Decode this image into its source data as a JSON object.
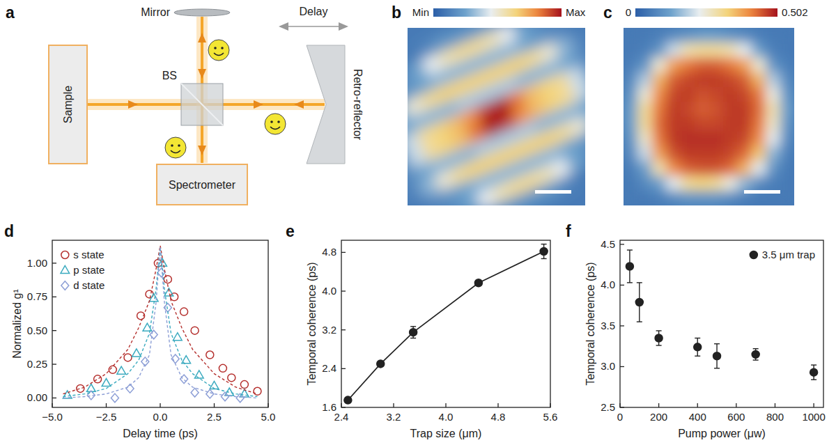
{
  "chart_data": [
    {
      "type": "diagram",
      "panel": "a",
      "labels": {
        "mirror": "Mirror",
        "beam_splitter": "BS",
        "delay": "Delay",
        "sample": "Sample",
        "spectrometer": "Spectrometer",
        "retro_reflector": "Retro-reflector"
      }
    },
    {
      "type": "heatmap",
      "panel": "b",
      "colorbar": {
        "range": [
          0,
          1
        ],
        "ticks": [
          {
            "value": 0,
            "label": "Min"
          },
          {
            "value": 1,
            "label": "Max"
          }
        ]
      },
      "cells": [
        [
          0.1,
          0.1,
          0.1,
          0.1,
          0.1,
          0.1,
          0.1,
          0.1,
          0.1,
          0.1,
          0.1,
          0.1,
          0.1,
          0.1,
          0.1,
          0.1
        ],
        [
          0.1,
          0.1,
          0.1,
          0.1,
          0.1,
          0.1,
          0.1,
          0.1,
          0.1,
          0.1,
          0.1,
          0.1,
          0.1,
          0.1,
          0.1,
          0.1
        ],
        [
          0.1,
          0.1,
          0.1,
          0.1,
          0.1,
          0.15,
          0.2,
          0.2,
          0.2,
          0.2,
          0.15,
          0.1,
          0.1,
          0.1,
          0.1,
          0.1
        ],
        [
          0.1,
          0.1,
          0.1,
          0.15,
          0.25,
          0.45,
          0.55,
          0.6,
          0.6,
          0.55,
          0.45,
          0.25,
          0.15,
          0.1,
          0.1,
          0.1
        ],
        [
          0.1,
          0.1,
          0.15,
          0.2,
          0.25,
          0.3,
          0.3,
          0.3,
          0.3,
          0.3,
          0.3,
          0.25,
          0.2,
          0.15,
          0.1,
          0.1
        ],
        [
          0.1,
          0.15,
          0.3,
          0.5,
          0.6,
          0.65,
          0.65,
          0.65,
          0.65,
          0.65,
          0.65,
          0.6,
          0.5,
          0.3,
          0.15,
          0.1
        ],
        [
          0.1,
          0.15,
          0.25,
          0.3,
          0.3,
          0.3,
          0.35,
          0.35,
          0.35,
          0.35,
          0.3,
          0.3,
          0.3,
          0.25,
          0.15,
          0.1
        ],
        [
          0.1,
          0.2,
          0.4,
          0.6,
          0.65,
          0.7,
          0.8,
          0.95,
          1,
          0.85,
          0.7,
          0.65,
          0.6,
          0.4,
          0.2,
          0.1
        ],
        [
          0.1,
          0.2,
          0.4,
          0.6,
          0.65,
          0.7,
          0.85,
          1,
          0.95,
          0.8,
          0.7,
          0.65,
          0.6,
          0.4,
          0.2,
          0.1
        ],
        [
          0.1,
          0.15,
          0.25,
          0.3,
          0.3,
          0.3,
          0.35,
          0.35,
          0.35,
          0.35,
          0.3,
          0.3,
          0.3,
          0.25,
          0.15,
          0.1
        ],
        [
          0.1,
          0.15,
          0.3,
          0.5,
          0.6,
          0.65,
          0.65,
          0.65,
          0.65,
          0.65,
          0.65,
          0.6,
          0.5,
          0.3,
          0.15,
          0.1
        ],
        [
          0.1,
          0.1,
          0.15,
          0.2,
          0.25,
          0.3,
          0.3,
          0.3,
          0.3,
          0.3,
          0.3,
          0.25,
          0.2,
          0.15,
          0.1,
          0.1
        ],
        [
          0.1,
          0.1,
          0.1,
          0.15,
          0.25,
          0.45,
          0.55,
          0.6,
          0.6,
          0.55,
          0.45,
          0.25,
          0.15,
          0.1,
          0.1,
          0.1
        ],
        [
          0.1,
          0.1,
          0.1,
          0.1,
          0.1,
          0.15,
          0.2,
          0.2,
          0.2,
          0.2,
          0.15,
          0.1,
          0.1,
          0.1,
          0.1,
          0.1
        ],
        [
          0.1,
          0.1,
          0.1,
          0.1,
          0.1,
          0.1,
          0.1,
          0.1,
          0.1,
          0.1,
          0.1,
          0.1,
          0.1,
          0.1,
          0.1,
          0.1
        ],
        [
          0.1,
          0.1,
          0.1,
          0.1,
          0.1,
          0.1,
          0.1,
          0.1,
          0.1,
          0.1,
          0.1,
          0.1,
          0.1,
          0.1,
          0.1,
          0.1
        ]
      ]
    },
    {
      "type": "heatmap",
      "panel": "c",
      "colorbar": {
        "range": [
          0,
          0.502
        ],
        "ticks": [
          0,
          0.502
        ]
      },
      "cells": [
        [
          0.05,
          0.05,
          0.06,
          0.08,
          0.1,
          0.12,
          0.12,
          0.1,
          0.08,
          0.06,
          0.05,
          0.05
        ],
        [
          0.05,
          0.06,
          0.1,
          0.2,
          0.28,
          0.3,
          0.3,
          0.28,
          0.22,
          0.12,
          0.06,
          0.05
        ],
        [
          0.06,
          0.1,
          0.25,
          0.38,
          0.42,
          0.44,
          0.44,
          0.42,
          0.38,
          0.25,
          0.1,
          0.06
        ],
        [
          0.08,
          0.18,
          0.36,
          0.44,
          0.46,
          0.47,
          0.47,
          0.46,
          0.44,
          0.36,
          0.18,
          0.08
        ],
        [
          0.1,
          0.25,
          0.4,
          0.46,
          0.47,
          0.45,
          0.46,
          0.47,
          0.46,
          0.42,
          0.24,
          0.1
        ],
        [
          0.12,
          0.3,
          0.42,
          0.47,
          0.46,
          0.44,
          0.45,
          0.47,
          0.47,
          0.43,
          0.28,
          0.12
        ],
        [
          0.12,
          0.3,
          0.43,
          0.47,
          0.47,
          0.46,
          0.46,
          0.47,
          0.47,
          0.42,
          0.26,
          0.1
        ],
        [
          0.1,
          0.26,
          0.42,
          0.47,
          0.48,
          0.48,
          0.48,
          0.47,
          0.46,
          0.4,
          0.22,
          0.08
        ],
        [
          0.08,
          0.2,
          0.38,
          0.45,
          0.47,
          0.47,
          0.47,
          0.46,
          0.43,
          0.34,
          0.15,
          0.06
        ],
        [
          0.06,
          0.12,
          0.28,
          0.4,
          0.44,
          0.45,
          0.45,
          0.43,
          0.36,
          0.22,
          0.1,
          0.05
        ],
        [
          0.05,
          0.08,
          0.12,
          0.22,
          0.3,
          0.32,
          0.3,
          0.24,
          0.15,
          0.08,
          0.06,
          0.05
        ],
        [
          0.05,
          0.05,
          0.06,
          0.08,
          0.1,
          0.1,
          0.1,
          0.08,
          0.06,
          0.05,
          0.05,
          0.05
        ]
      ]
    },
    {
      "type": "scatter",
      "panel": "d",
      "x_label": "Delay time (ps)",
      "y_label": "Normalized g¹",
      "xlim": [
        -5,
        5
      ],
      "xticks": [
        {
          "value": -5,
          "label": "−5.0"
        },
        {
          "value": -2.5,
          "label": "−2.5"
        },
        {
          "value": 0,
          "label": "0.0"
        },
        2.5,
        {
          "value": 5,
          "label": "5.0"
        }
      ],
      "ylim": [
        -0.07,
        1.17
      ],
      "yticks": [
        {
          "value": 0,
          "label": "0.00"
        },
        0.25,
        {
          "value": 0.5,
          "label": "0.50"
        },
        0.75,
        {
          "value": 1,
          "label": "1.00"
        }
      ],
      "legend": "upper left",
      "series": [
        {
          "name": "s state",
          "color": "#b5302e",
          "marker": "open-circle",
          "x": [
            -3.7,
            -2.9,
            -2.2,
            -1.5,
            -0.9,
            -0.5,
            -0.1,
            0.35,
            0.65,
            1.1,
            1.6,
            2.3,
            2.9,
            3.3,
            3.9,
            4.5
          ],
          "values": [
            0.07,
            0.14,
            0.21,
            0.3,
            0.61,
            0.77,
            1.0,
            0.88,
            0.75,
            0.64,
            0.5,
            0.32,
            0.22,
            0.15,
            0.1,
            0.05
          ]
        },
        {
          "name": "p state",
          "color": "#3aaabf",
          "marker": "open-triangle",
          "x": [
            -4.3,
            -3.2,
            -2.5,
            -1.8,
            -1.1,
            -0.6,
            -0.3,
            0.1,
            0.4,
            0.8,
            1.2,
            1.8,
            2.5,
            3.2,
            3.9
          ],
          "values": [
            0.02,
            0.07,
            0.11,
            0.2,
            0.33,
            0.52,
            0.74,
            1.0,
            0.78,
            0.45,
            0.28,
            0.17,
            0.09,
            0.04,
            0.03
          ]
        },
        {
          "name": "d state",
          "color": "#8d9fd6",
          "marker": "open-diamond",
          "x": [
            -3.2,
            -2.1,
            -1.4,
            -0.7,
            -0.3,
            0.05,
            0.35,
            0.7,
            1.1,
            1.6,
            2.3,
            3.0,
            3.7
          ],
          "values": [
            0.02,
            0.0,
            0.07,
            0.27,
            0.47,
            0.93,
            0.67,
            0.29,
            0.14,
            0.04,
            0.03,
            0.01,
            0.0
          ]
        },
        {
          "type": "line",
          "line_style": "dashed",
          "color": "#b5302e",
          "x": [
            -4.5,
            -3.5,
            -2.5,
            -1.5,
            -1,
            -0.5,
            -0.2,
            0,
            0.2,
            0.5,
            1,
            1.5,
            2.5,
            3.5,
            4.5
          ],
          "values": [
            0.03,
            0.08,
            0.18,
            0.36,
            0.52,
            0.72,
            0.95,
            1.13,
            0.95,
            0.72,
            0.52,
            0.36,
            0.18,
            0.08,
            0.03
          ]
        },
        {
          "type": "line",
          "line_style": "dashed",
          "color": "#3aaabf",
          "x": [
            -4.5,
            -3.5,
            -2.5,
            -1.5,
            -1,
            -0.5,
            -0.2,
            0,
            0.2,
            0.5,
            1,
            1.5,
            2.5,
            3.5,
            4.5
          ],
          "values": [
            0.01,
            0.03,
            0.07,
            0.18,
            0.28,
            0.48,
            0.8,
            1.12,
            0.8,
            0.48,
            0.28,
            0.18,
            0.07,
            0.03,
            0.01
          ]
        },
        {
          "type": "line",
          "line_style": "dashed",
          "color": "#8d9fd6",
          "x": [
            -4.5,
            -3.5,
            -2.5,
            -1.5,
            -1,
            -0.5,
            -0.2,
            0,
            0.2,
            0.5,
            1,
            1.5,
            2.5,
            3.5,
            4.5
          ],
          "values": [
            0,
            0.01,
            0.03,
            0.08,
            0.15,
            0.32,
            0.7,
            1.12,
            0.7,
            0.32,
            0.15,
            0.08,
            0.03,
            0.01,
            0
          ]
        }
      ]
    },
    {
      "type": "line",
      "panel": "e",
      "x_label": "Trap size (μm)",
      "y_label": "Temporal coherence (ps)",
      "xlim": [
        2.4,
        5.6
      ],
      "xticks": [
        2.4,
        3.2,
        {
          "value": 4,
          "label": "4.0"
        },
        4.8,
        5.6
      ],
      "ylim": [
        1.6,
        5.05
      ],
      "yticks": [
        1.6,
        2.4,
        3.2,
        {
          "value": 4,
          "label": "4.0"
        },
        4.8
      ],
      "x": [
        2.5,
        3.0,
        3.5,
        4.5,
        5.5
      ],
      "series": [
        {
          "color": "#222222",
          "marker": "circle",
          "line_style": "solid",
          "values": [
            1.75,
            2.5,
            3.15,
            4.17,
            4.82
          ],
          "errors": [
            0.05,
            0.05,
            0.12,
            0.05,
            0.15
          ]
        }
      ]
    },
    {
      "type": "scatter",
      "panel": "f",
      "x_label": "Pump power (μw)",
      "y_label": "Temporal coherence (ps)",
      "xlim": [
        0,
        1050
      ],
      "xticks": [
        0,
        200,
        400,
        600,
        800,
        1000
      ],
      "ylim": [
        2.5,
        4.55
      ],
      "yticks": [
        2.5,
        {
          "value": 3,
          "label": "3.0"
        },
        3.5,
        {
          "value": 4,
          "label": "4.0"
        },
        4.5
      ],
      "legend": "upper right",
      "x": [
        50,
        100,
        200,
        400,
        500,
        700,
        1000
      ],
      "series": [
        {
          "name": "3.5 μm trap",
          "color": "#222222",
          "marker": "circle",
          "values": [
            4.23,
            3.79,
            3.35,
            3.24,
            3.13,
            3.15,
            2.93
          ],
          "errors": [
            0.2,
            0.24,
            0.09,
            0.11,
            0.15,
            0.07,
            0.09
          ]
        }
      ]
    }
  ]
}
